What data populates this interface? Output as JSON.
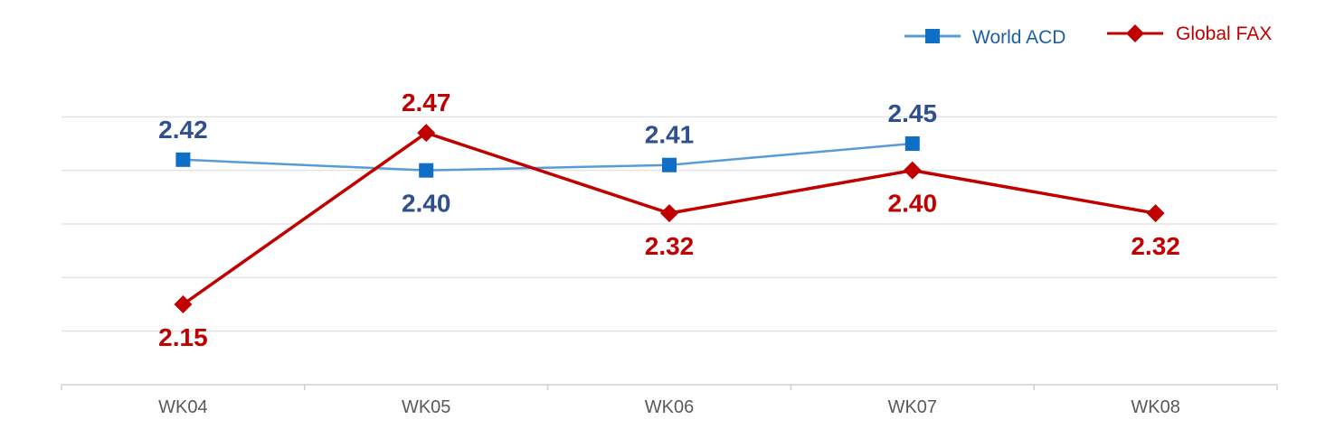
{
  "chart_data": {
    "type": "line",
    "categories": [
      "WK04",
      "WK05",
      "WK06",
      "WK07",
      "WK08"
    ],
    "series": [
      {
        "name": "World ACD",
        "values": [
          2.42,
          2.4,
          2.41,
          2.45,
          null
        ],
        "labels": [
          "2.42",
          "2.40",
          "2.41",
          "2.45",
          ""
        ],
        "label_position": [
          "above",
          "below",
          "above",
          "above",
          ""
        ],
        "color": "#2F4F8F",
        "line_color": "#5B9BD5",
        "marker_color": "#0F6FC6",
        "marker": "square"
      },
      {
        "name": "Global FAX",
        "values": [
          2.15,
          2.47,
          2.32,
          2.4,
          2.32
        ],
        "labels": [
          "2.15",
          "2.47",
          "2.32",
          "2.40",
          "2.32"
        ],
        "label_position": [
          "below",
          "above",
          "below",
          "below",
          "below"
        ],
        "color": "#C00000",
        "line_color": "#C00000",
        "marker_color": "#C00000",
        "marker": "diamond"
      }
    ],
    "ylim": [
      2.0,
      2.6
    ],
    "grid": true,
    "legend_position": "top-right",
    "title": "",
    "xlabel": "",
    "ylabel": ""
  },
  "legend": {
    "world_acd_label": "World ACD",
    "world_acd_color": "#1F5F9F",
    "global_fax_label": "Global FAX",
    "global_fax_color": "#C00000"
  }
}
